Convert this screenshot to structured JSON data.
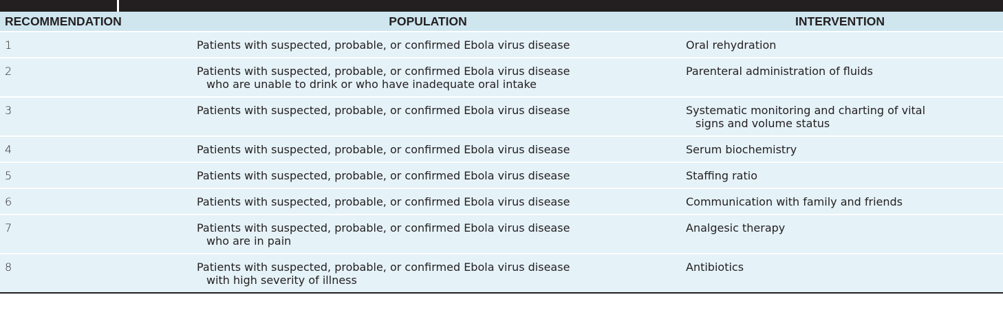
{
  "headers": {
    "recommendation": "RECOMMENDATION",
    "population": "POPULATION",
    "intervention": "INTERVENTION"
  },
  "rows": [
    {
      "num": "1",
      "population": [
        "Patients with suspected, probable, or confirmed Ebola virus disease"
      ],
      "intervention": [
        "Oral rehydration"
      ]
    },
    {
      "num": "2",
      "population": [
        "Patients with suspected, probable, or confirmed Ebola virus disease",
        "who are unable to drink or who have inadequate oral intake"
      ],
      "intervention": [
        "Parenteral administration of fluids"
      ]
    },
    {
      "num": "3",
      "population": [
        "Patients with suspected, probable, or confirmed Ebola virus disease"
      ],
      "intervention": [
        "Systematic monitoring and charting of vital",
        "signs and volume status"
      ]
    },
    {
      "num": "4",
      "population": [
        "Patients with suspected, probable, or confirmed Ebola virus disease"
      ],
      "intervention": [
        "Serum biochemistry"
      ]
    },
    {
      "num": "5",
      "population": [
        "Patients with suspected, probable, or confirmed Ebola virus disease"
      ],
      "intervention": [
        "Staffing ratio"
      ]
    },
    {
      "num": "6",
      "population": [
        "Patients with suspected, probable, or confirmed Ebola virus disease"
      ],
      "intervention": [
        "Communication with family and friends"
      ]
    },
    {
      "num": "7",
      "population": [
        "Patients with suspected, probable, or confirmed Ebola virus disease",
        "who are in pain"
      ],
      "intervention": [
        "Analgesic therapy"
      ]
    },
    {
      "num": "8",
      "population": [
        "Patients with suspected, probable, or confirmed Ebola virus disease",
        "with high severity of illness"
      ],
      "intervention": [
        "Antibiotics"
      ]
    }
  ],
  "colors": {
    "header_bg": "#cfe6ef",
    "row_bg": "#e5f2f8",
    "top_bar": "#231f20",
    "text": "#231f20"
  }
}
